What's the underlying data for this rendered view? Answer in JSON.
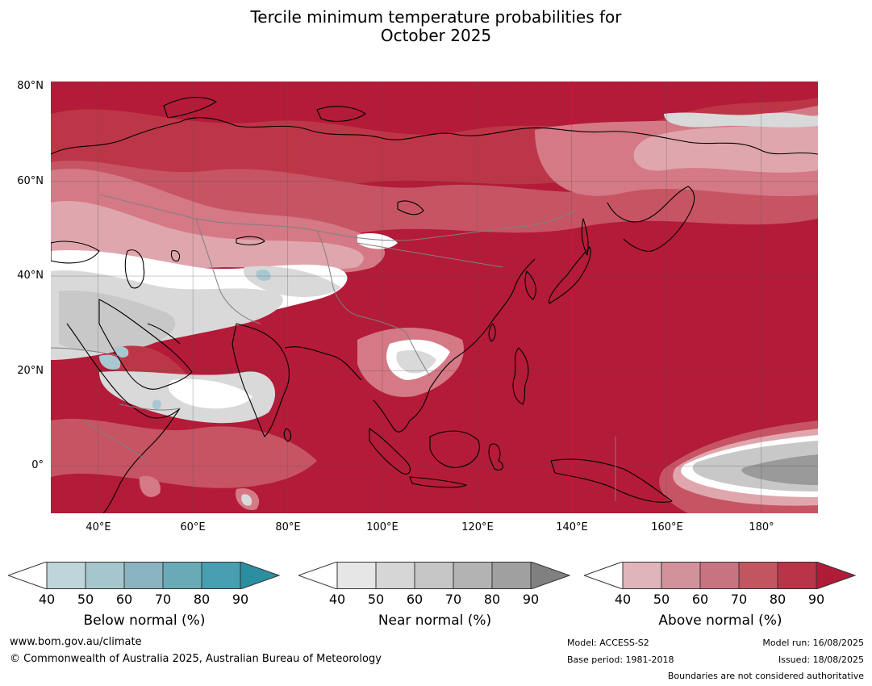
{
  "title_line1": "Tercile minimum temperature probabilities for",
  "title_line2": "October 2025",
  "lat_labels": [
    "80°N",
    "60°N",
    "40°N",
    "20°N",
    "0°"
  ],
  "lon_labels": [
    "40°E",
    "60°E",
    "80°E",
    "100°E",
    "120°E",
    "140°E",
    "160°E",
    "180°"
  ],
  "map": {
    "lon_range": [
      30,
      192
    ],
    "lat_range": [
      -10,
      81
    ],
    "colors": {
      "above_90": "#b31b38",
      "above_80": "#bd3647",
      "above_70": "#c65463",
      "above_60": "#d47985",
      "above_50": "#e0a6ad",
      "near_50": "#d9d9d9",
      "near_60": "#c8c8c8",
      "near_80": "#9a9a9a",
      "below_50": "#a9c7d0",
      "white": "#ffffff",
      "coastline": "#000000",
      "border": "#808080"
    }
  },
  "colorbars": [
    {
      "label": "Below normal (%)",
      "ticks": [
        "40",
        "50",
        "60",
        "70",
        "80",
        "90"
      ],
      "colors": [
        "#ffffff",
        "#bfd5dc",
        "#a6c6cd",
        "#89b4bf",
        "#6aaab7",
        "#479fb1",
        "#2c8ea1"
      ]
    },
    {
      "label": "Near normal (%)",
      "ticks": [
        "40",
        "50",
        "60",
        "70",
        "80",
        "90"
      ],
      "colors": [
        "#ffffff",
        "#e6e6e6",
        "#d6d6d6",
        "#c6c6c6",
        "#b3b3b3",
        "#a0a0a0",
        "#808080"
      ]
    },
    {
      "label": "Above normal (%)",
      "ticks": [
        "40",
        "50",
        "60",
        "70",
        "80",
        "90"
      ],
      "colors": [
        "#ffffff",
        "#e0b5ba",
        "#d3929b",
        "#c87480",
        "#c15661",
        "#b93447",
        "#b01c38"
      ]
    }
  ],
  "footer": {
    "website": "www.bom.gov.au/climate",
    "copyright": "© Commonwealth of Australia 2025, Australian Bureau of Meteorology",
    "model": "Model: ACCESS-S2",
    "base_period": "Base period: 1981-2018",
    "model_run": "Model run: 16/08/2025",
    "issued": "Issued: 18/08/2025",
    "disclaimer": "Boundaries are not considered authoritative"
  }
}
